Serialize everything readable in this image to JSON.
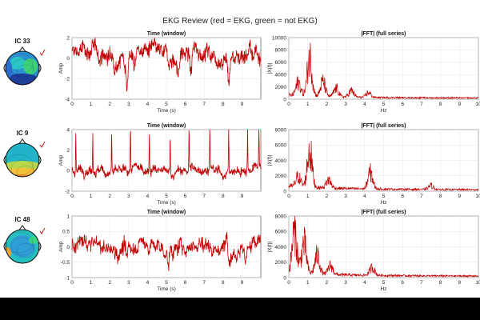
{
  "figure": {
    "title": "EKG Review (red = EKG, green = not EKG)"
  },
  "colors": {
    "trace": "#c00000",
    "axis": "#333333",
    "grid": "#e6e6e6",
    "check": "#cc2222"
  },
  "chart_data": [
    {
      "id": "ic33",
      "label": "IC 33",
      "time": {
        "type": "line",
        "title": "Time (window)",
        "xlabel": "Time (s)",
        "ylabel": "Amp",
        "xlim": [
          0,
          10
        ],
        "ylim": [
          -4,
          2
        ],
        "xticks": [
          0,
          1,
          2,
          3,
          4,
          5,
          6,
          7,
          8,
          9
        ],
        "yticks": [
          -4,
          -2,
          0,
          2
        ],
        "pattern": {
          "amp": 1.0,
          "offset": 0.4,
          "bumps": [
            [
              2.9,
              -2.6
            ],
            [
              3.3,
              -2.0
            ],
            [
              5.6,
              -1.6
            ],
            [
              6.3,
              -2.4
            ],
            [
              8.3,
              -2.2
            ],
            [
              9.6,
              -1.3
            ]
          ]
        }
      },
      "fft": {
        "type": "line",
        "title": "|FFT| (full series)",
        "xlabel": "Hz",
        "ylabel": "|X(f)|",
        "xlim": [
          0,
          10
        ],
        "ylim": [
          0,
          10000
        ],
        "xticks": [
          0,
          1,
          2,
          3,
          4,
          5,
          6,
          7,
          8,
          9,
          10
        ],
        "yticks": [
          0,
          2000,
          4000,
          6000,
          8000,
          10000
        ],
        "peaks": [
          [
            0.5,
            2800
          ],
          [
            1.1,
            8300
          ],
          [
            1.8,
            3200
          ],
          [
            2.5,
            1800
          ],
          [
            3.3,
            1400
          ],
          [
            4.2,
            1000
          ]
        ]
      }
    },
    {
      "id": "ic9",
      "label": "IC 9",
      "time": {
        "type": "line",
        "title": "Time (window)",
        "xlabel": "Time (s)",
        "ylabel": "Amp",
        "xlim": [
          0,
          10
        ],
        "ylim": [
          -2,
          4
        ],
        "xticks": [
          0,
          1,
          2,
          3,
          4,
          5,
          6,
          7,
          8,
          9
        ],
        "yticks": [
          -2,
          0,
          2,
          4
        ],
        "pattern": {
          "amp": 0.55,
          "offset": 0.0,
          "spikes": [
            0.2,
            1.1,
            2.1,
            3.1,
            4.1,
            5.2,
            6.2,
            7.3,
            8.3,
            9.3,
            9.9
          ],
          "spike_height": 4
        }
      },
      "fft": {
        "type": "line",
        "title": "|FFT| (full series)",
        "xlabel": "Hz",
        "ylabel": "|X(f)|",
        "xlim": [
          0,
          10
        ],
        "ylim": [
          0,
          8000
        ],
        "xticks": [
          0,
          1,
          2,
          3,
          4,
          5,
          6,
          7,
          8,
          9,
          10
        ],
        "yticks": [
          0,
          2000,
          4000,
          6000,
          8000
        ],
        "peaks": [
          [
            0.5,
            1800
          ],
          [
            1.1,
            6400
          ],
          [
            2.1,
            1400
          ],
          [
            4.3,
            2800
          ],
          [
            7.5,
            700
          ]
        ]
      }
    },
    {
      "id": "ic48",
      "label": "IC 48",
      "time": {
        "type": "line",
        "title": "Time (window)",
        "xlabel": "Time (s)",
        "ylabel": "Amp",
        "xlim": [
          0,
          10
        ],
        "ylim": [
          -1,
          1
        ],
        "xticks": [
          0,
          1,
          2,
          3,
          4,
          5,
          6,
          7,
          8,
          9
        ],
        "yticks": [
          -1,
          -0.5,
          0,
          0.5,
          1
        ],
        "pattern": {
          "amp": 0.3,
          "offset": 0.0,
          "bumps": [
            [
              8.2,
              0.6
            ],
            [
              2.9,
              -0.55
            ],
            [
              5.1,
              -0.5
            ],
            [
              9.2,
              -0.6
            ]
          ]
        }
      },
      "fft": {
        "type": "line",
        "title": "|FFT| (full series)",
        "xlabel": "Hz",
        "ylabel": "|X(f)|",
        "xlim": [
          0,
          10
        ],
        "ylim": [
          0,
          8000
        ],
        "xticks": [
          0,
          1,
          2,
          3,
          4,
          5,
          6,
          7,
          8,
          9,
          10
        ],
        "yticks": [
          0,
          2000,
          4000,
          6000,
          8000
        ],
        "peaks": [
          [
            0.3,
            7200
          ],
          [
            0.8,
            5200
          ],
          [
            1.5,
            3200
          ],
          [
            2.2,
            1500
          ],
          [
            4.4,
            1400
          ]
        ]
      }
    }
  ]
}
